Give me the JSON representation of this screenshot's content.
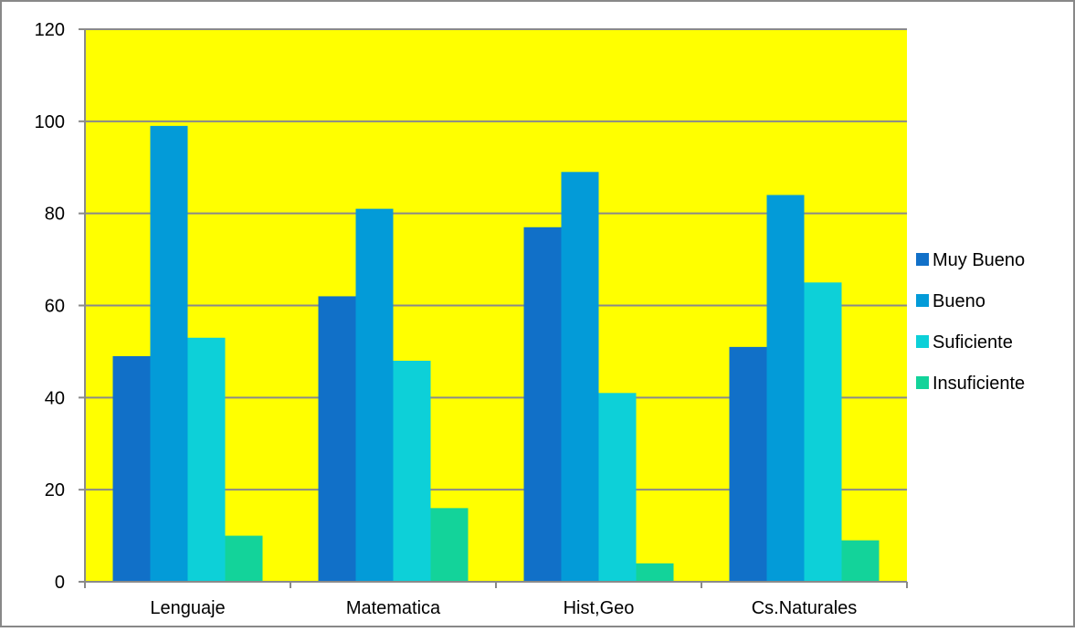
{
  "chart_data": {
    "type": "bar",
    "title": "",
    "xlabel": "",
    "ylabel": "",
    "categories": [
      "Lenguaje",
      "Matematica",
      "Hist,Geo",
      "Cs.Naturales"
    ],
    "series": [
      {
        "name": "Muy Bueno",
        "values": [
          49,
          62,
          77,
          51
        ],
        "color": "#1170c8"
      },
      {
        "name": "Bueno",
        "values": [
          99,
          81,
          89,
          84
        ],
        "color": "#039bd8"
      },
      {
        "name": "Suficiente",
        "values": [
          53,
          48,
          41,
          65
        ],
        "color": "#0dd0d8"
      },
      {
        "name": "Insuficiente",
        "values": [
          10,
          16,
          4,
          9
        ],
        "color": "#13d39a"
      }
    ],
    "ylim": [
      0,
      120
    ],
    "yticks": [
      0,
      20,
      40,
      60,
      80,
      100,
      120
    ],
    "grid": true,
    "legend_position": "right",
    "plot_background": "#ffff00"
  }
}
